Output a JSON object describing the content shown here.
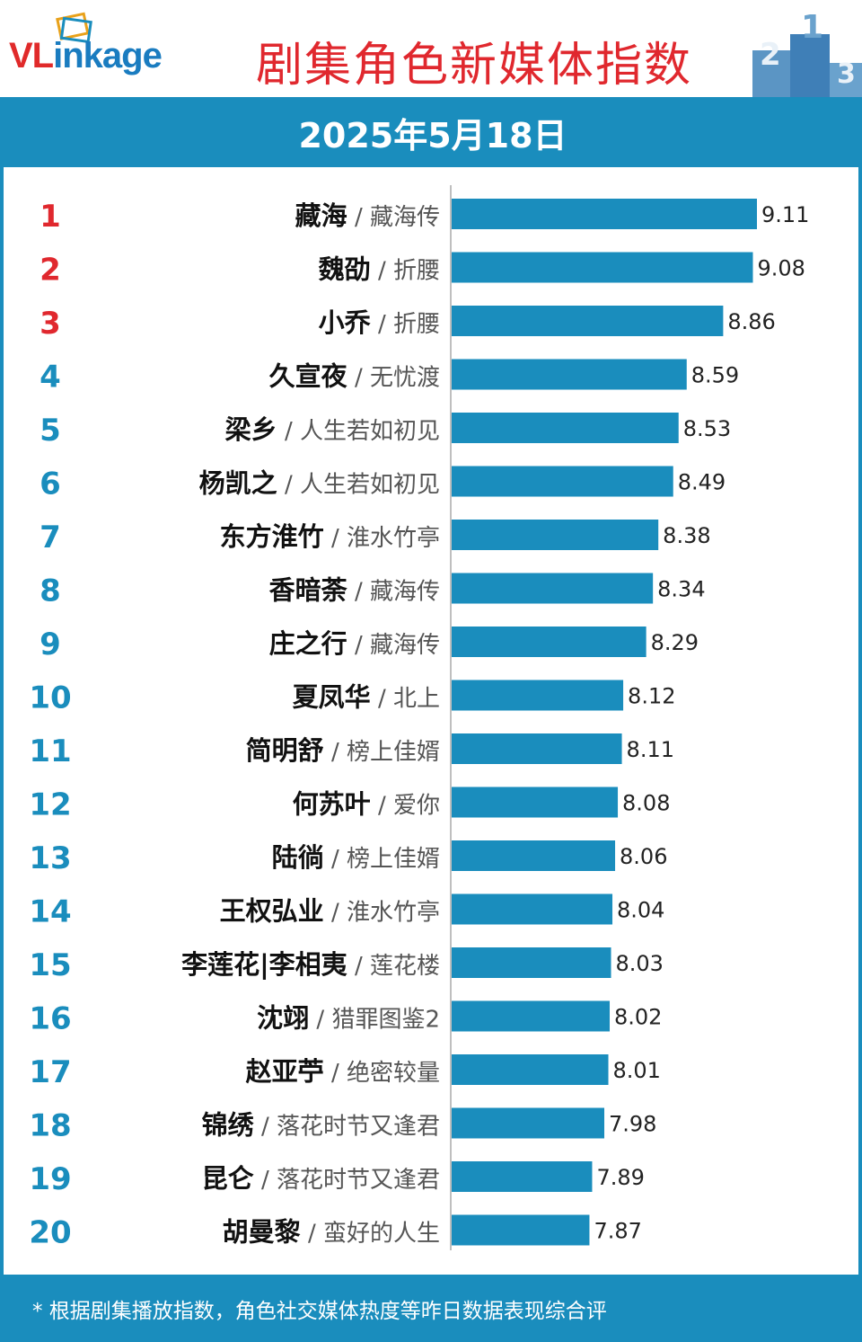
{
  "brand": {
    "logo_text_a": "VL",
    "logo_text_b": "inkage"
  },
  "header": {
    "title": "剧集角色新媒体指数",
    "date": "2025年5月18日"
  },
  "footer": {
    "note": "* 根据剧集播放指数，角色社交媒体热度等昨日数据表现综合评"
  },
  "colors": {
    "bar": "#1a8dbd",
    "top_rank": "#e0282e",
    "rank": "#1a8dbd",
    "title": "#e0282e"
  },
  "chart_data": {
    "type": "bar",
    "orientation": "horizontal",
    "title": "剧集角色新媒体指数",
    "xlim": [
      6.85,
      9.4
    ],
    "rows": [
      {
        "rank": "1",
        "role": "藏海",
        "drama": "藏海传",
        "value": 9.11
      },
      {
        "rank": "2",
        "role": "魏劭",
        "drama": "折腰",
        "value": 9.08
      },
      {
        "rank": "3",
        "role": "小乔",
        "drama": "折腰",
        "value": 8.86
      },
      {
        "rank": "4",
        "role": "久宣夜",
        "drama": "无忧渡",
        "value": 8.59
      },
      {
        "rank": "5",
        "role": "梁乡",
        "drama": "人生若如初见",
        "value": 8.53
      },
      {
        "rank": "6",
        "role": "杨凯之",
        "drama": "人生若如初见",
        "value": 8.49
      },
      {
        "rank": "7",
        "role": "东方淮竹",
        "drama": "淮水竹亭",
        "value": 8.38
      },
      {
        "rank": "8",
        "role": "香暗荼",
        "drama": "藏海传",
        "value": 8.34
      },
      {
        "rank": "9",
        "role": "庄之行",
        "drama": "藏海传",
        "value": 8.29
      },
      {
        "rank": "10",
        "role": "夏凤华",
        "drama": "北上",
        "value": 8.12
      },
      {
        "rank": "11",
        "role": "简明舒",
        "drama": "榜上佳婿",
        "value": 8.11
      },
      {
        "rank": "12",
        "role": "何苏叶",
        "drama": "爱你",
        "value": 8.08
      },
      {
        "rank": "13",
        "role": "陆徜",
        "drama": "榜上佳婿",
        "value": 8.06
      },
      {
        "rank": "14",
        "role": "王权弘业",
        "drama": "淮水竹亭",
        "value": 8.04
      },
      {
        "rank": "15",
        "role": "李莲花|李相夷",
        "drama": "莲花楼",
        "value": 8.03
      },
      {
        "rank": "16",
        "role": "沈翊",
        "drama": "猎罪图鉴2",
        "value": 8.02
      },
      {
        "rank": "17",
        "role": "赵亚苧",
        "drama": "绝密较量",
        "value": 8.01
      },
      {
        "rank": "18",
        "role": "锦绣",
        "drama": "落花时节又逢君",
        "value": 7.98
      },
      {
        "rank": "19",
        "role": "昆仑",
        "drama": "落花时节又逢君",
        "value": 7.89
      },
      {
        "rank": "20",
        "role": "胡曼黎",
        "drama": "蛮好的人生",
        "value": 7.87
      }
    ]
  }
}
